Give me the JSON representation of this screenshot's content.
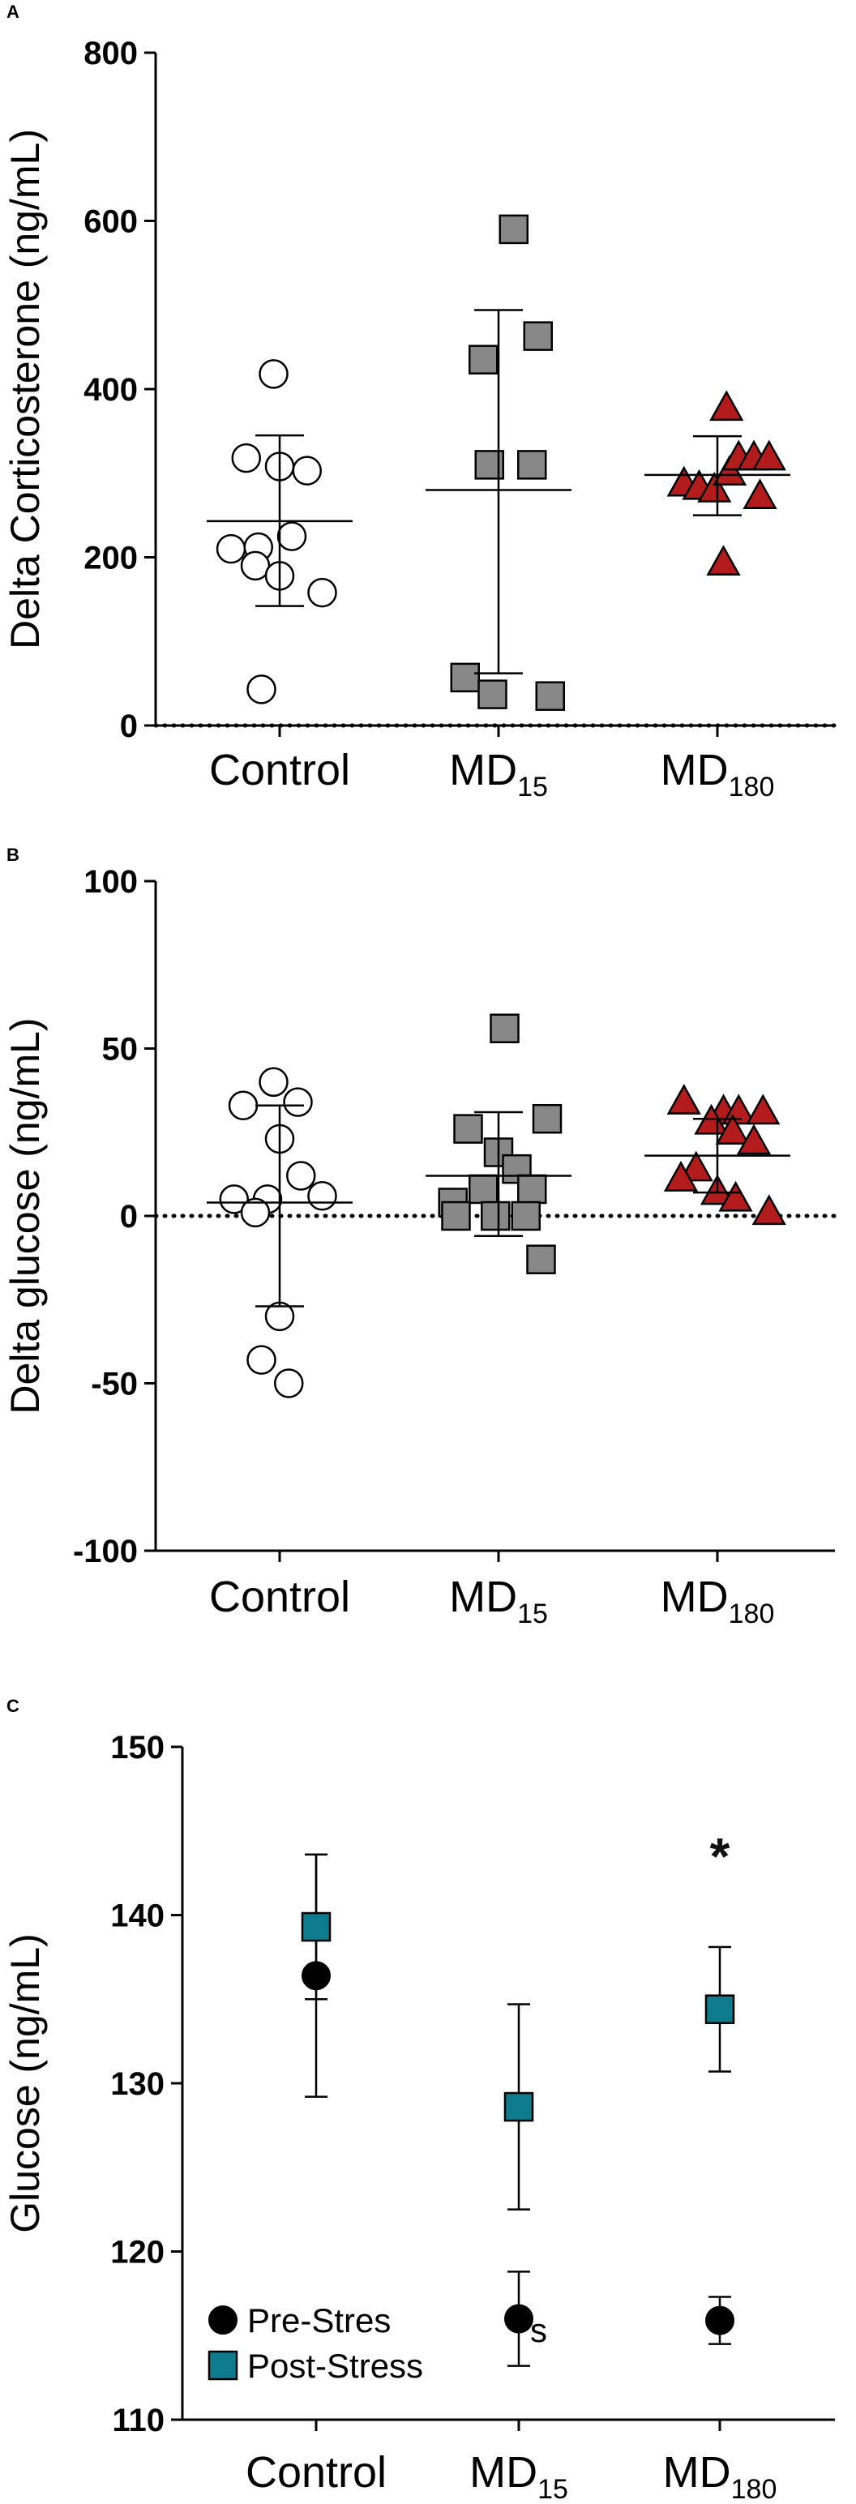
{
  "chart_data": [
    {
      "panel": "A",
      "type": "scatter",
      "ylabel": "Delta Corticosterone (ng/mL)",
      "xlabel": "",
      "ylim": [
        0,
        800
      ],
      "yticks": [
        "0",
        "200",
        "400",
        "600",
        "800"
      ],
      "baseline": 0,
      "categories": [
        {
          "name": "Control",
          "sub": ""
        },
        {
          "name": "MD",
          "sub": "15"
        },
        {
          "name": "MD",
          "sub": "180"
        }
      ],
      "groups": [
        {
          "name": "Control",
          "marker": "circle",
          "color": "#ffffff",
          "points": [
            [
              -0.1,
              418
            ],
            [
              -0.55,
              318
            ],
            [
              0.0,
              308
            ],
            [
              0.45,
              303
            ],
            [
              -0.8,
              210
            ],
            [
              -0.35,
              212
            ],
            [
              0.2,
              225
            ],
            [
              -0.4,
              190
            ],
            [
              0.0,
              178
            ],
            [
              0.7,
              158
            ],
            [
              -0.3,
              43
            ]
          ],
          "mean": 243,
          "err_low": 142,
          "err_high": 345
        },
        {
          "name": "MD15",
          "marker": "square",
          "color": "#888888",
          "points": [
            [
              0.25,
              590
            ],
            [
              -0.25,
              435
            ],
            [
              0.65,
              463
            ],
            [
              -0.15,
              310
            ],
            [
              0.55,
              310
            ],
            [
              -0.55,
              57
            ],
            [
              -0.1,
              37
            ],
            [
              0.85,
              35
            ]
          ],
          "mean": 280,
          "err_low": 62,
          "err_high": 494
        },
        {
          "name": "MD180",
          "marker": "triangle",
          "color": "#b31c1c",
          "points": [
            [
              0.15,
              377
            ],
            [
              -0.55,
              287
            ],
            [
              -0.3,
              283
            ],
            [
              -0.05,
              280
            ],
            [
              0.2,
              300
            ],
            [
              0.35,
              318
            ],
            [
              0.6,
              318
            ],
            [
              0.85,
              318
            ],
            [
              0.7,
              272
            ],
            [
              0.1,
              193
            ]
          ],
          "mean": 298,
          "err_low": 250,
          "err_high": 344
        }
      ]
    },
    {
      "panel": "B",
      "type": "scatter",
      "ylabel": "Delta glucose (ng/mL)",
      "xlabel": "",
      "ylim": [
        -100,
        100
      ],
      "yticks": [
        "-100",
        "-50",
        "0",
        "50",
        "100"
      ],
      "baseline": 0,
      "categories": [
        {
          "name": "Control",
          "sub": ""
        },
        {
          "name": "MD",
          "sub": "15"
        },
        {
          "name": "MD",
          "sub": "180"
        }
      ],
      "groups": [
        {
          "name": "Control",
          "marker": "circle",
          "color": "#ffffff",
          "points": [
            [
              -0.1,
              40
            ],
            [
              -0.6,
              33
            ],
            [
              0.3,
              34
            ],
            [
              0.0,
              23
            ],
            [
              0.35,
              12
            ],
            [
              -0.2,
              5
            ],
            [
              -0.75,
              5
            ],
            [
              0.7,
              6
            ],
            [
              -0.4,
              1
            ],
            [
              0.0,
              -30
            ],
            [
              -0.3,
              -43
            ],
            [
              0.15,
              -50
            ]
          ],
          "mean": 4,
          "err_low": -27,
          "err_high": 33
        },
        {
          "name": "MD15",
          "marker": "square",
          "color": "#888888",
          "points": [
            [
              0.1,
              56
            ],
            [
              -0.5,
              26
            ],
            [
              0.8,
              29
            ],
            [
              0.0,
              19
            ],
            [
              0.3,
              14
            ],
            [
              -0.25,
              8
            ],
            [
              0.55,
              8
            ],
            [
              -0.75,
              4
            ],
            [
              -0.7,
              0
            ],
            [
              -0.05,
              0
            ],
            [
              0.45,
              0
            ],
            [
              0.7,
              -13
            ]
          ],
          "mean": 12,
          "err_low": -6,
          "err_high": 31
        },
        {
          "name": "MD180",
          "marker": "triangle",
          "color": "#b31c1c",
          "points": [
            [
              -0.55,
              34
            ],
            [
              0.1,
              31
            ],
            [
              0.35,
              31
            ],
            [
              0.75,
              31
            ],
            [
              -0.1,
              28
            ],
            [
              0.25,
              25
            ],
            [
              0.6,
              22
            ],
            [
              -0.35,
              14
            ],
            [
              -0.6,
              11
            ],
            [
              0.0,
              7
            ],
            [
              0.3,
              5
            ],
            [
              0.85,
              1
            ]
          ],
          "mean": 18,
          "err_low": 7,
          "err_high": 29
        }
      ]
    },
    {
      "panel": "C",
      "type": "scatter",
      "ylabel": "Glucose (ng/mL)",
      "xlabel": "",
      "ylim": [
        110,
        150
      ],
      "yticks": [
        "110",
        "120",
        "130",
        "140",
        "150"
      ],
      "categories": [
        {
          "name": "Control",
          "sub": ""
        },
        {
          "name": "MD",
          "sub": "15"
        },
        {
          "name": "MD",
          "sub": "180"
        }
      ],
      "series": [
        {
          "name": "Pre-Stres",
          "marker": "circle",
          "color": "#000000",
          "values": [
            136.4,
            116.0,
            115.9
          ],
          "err_low": [
            129.2,
            113.2,
            114.5
          ],
          "err_high": [
            143.6,
            118.8,
            117.3
          ]
        },
        {
          "name": "Post-Stress",
          "marker": "square",
          "color": "#0e7c8c",
          "values": [
            139.3,
            128.6,
            134.4
          ],
          "err_low": [
            135.0,
            122.5,
            130.7
          ],
          "err_high": [
            143.6,
            134.7,
            138.1
          ]
        }
      ],
      "legend_position": "bottom-left",
      "annotations": [
        {
          "text": "*",
          "category": 2,
          "value": 143.5
        },
        {
          "text": "s",
          "category": 1,
          "value": 115.3
        }
      ]
    }
  ]
}
